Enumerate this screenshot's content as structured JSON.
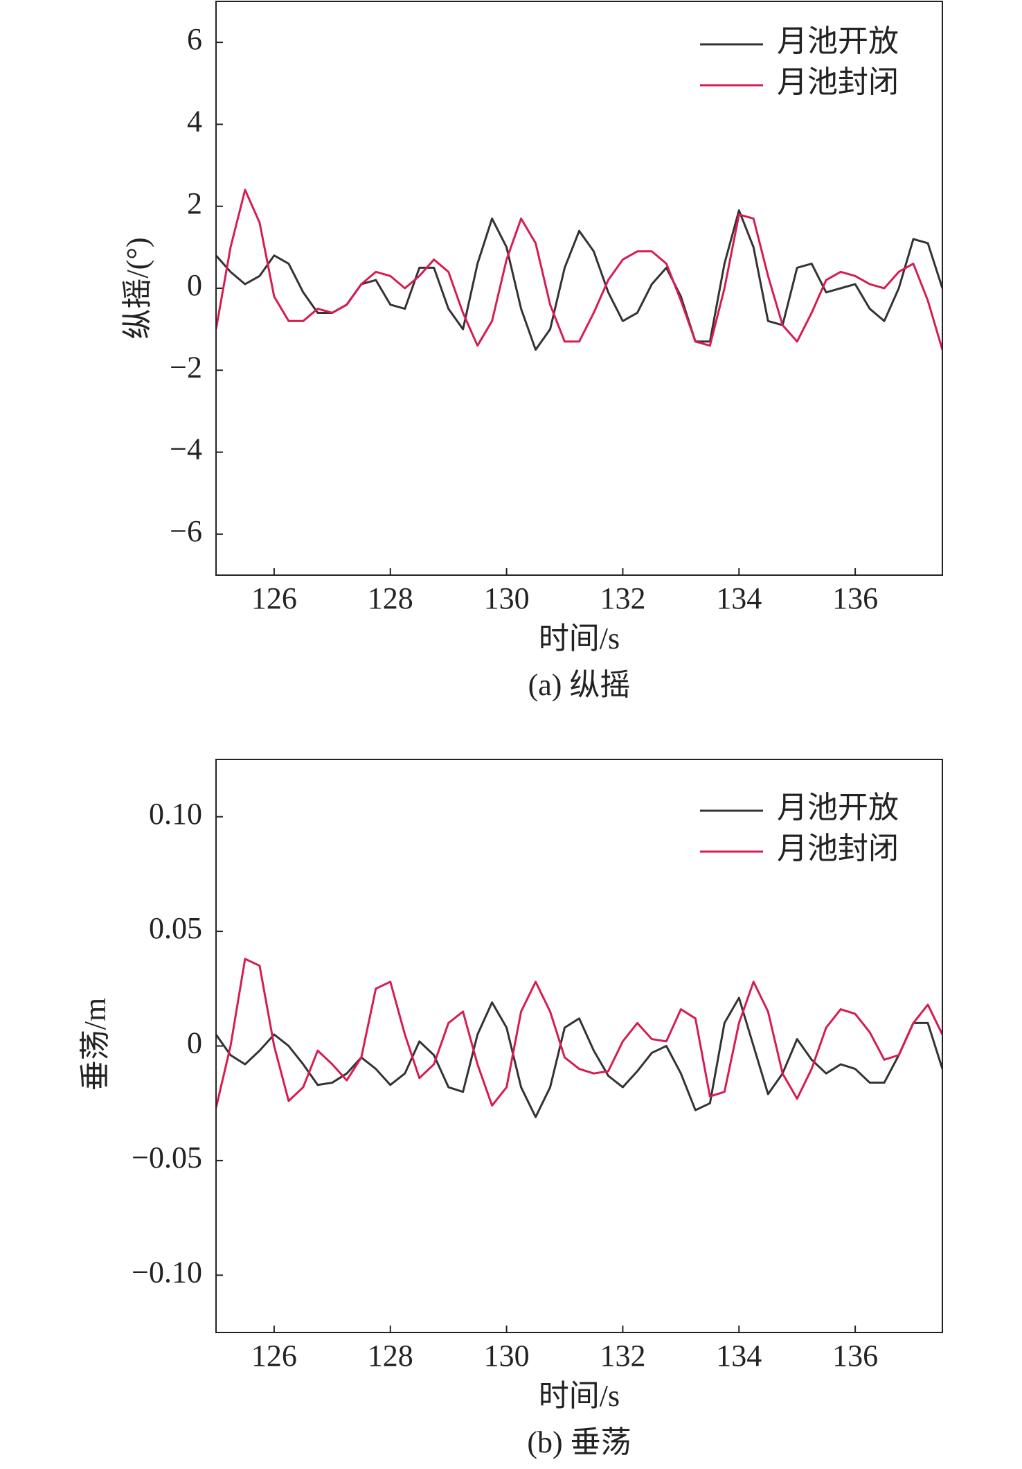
{
  "chart_data": [
    {
      "type": "line",
      "caption": "(a) 纵摇",
      "x_label": "时间/s",
      "y_label": "纵摇/(°)",
      "legend": "upper right",
      "xlim": [
        125,
        137.5
      ],
      "xticks": [
        126,
        128,
        130,
        132,
        134,
        136
      ],
      "ylim": [
        -7,
        7
      ],
      "yticks": [
        {
          "value": -6,
          "label": "−6"
        },
        {
          "value": -4,
          "label": "−4"
        },
        {
          "value": -2,
          "label": "−2"
        },
        0,
        2,
        4,
        6
      ],
      "x": [
        125,
        125.25,
        125.5,
        125.75,
        126,
        126.25,
        126.5,
        126.75,
        127,
        127.25,
        127.5,
        127.75,
        128,
        128.25,
        128.5,
        128.75,
        129,
        129.25,
        129.5,
        129.75,
        130,
        130.25,
        130.5,
        130.75,
        131,
        131.25,
        131.5,
        131.75,
        132,
        132.25,
        132.5,
        132.75,
        133,
        133.25,
        133.5,
        133.75,
        134,
        134.25,
        134.5,
        134.75,
        135,
        135.25,
        135.5,
        135.75,
        136,
        136.25,
        136.5,
        136.75,
        137,
        137.25,
        137.5
      ],
      "series": [
        {
          "name": "月池开放",
          "color": "#333333",
          "values": [
            0.8,
            0.4,
            0.1,
            0.3,
            0.8,
            0.6,
            -0.1,
            -0.6,
            -0.6,
            -0.4,
            0.1,
            0.2,
            -0.4,
            -0.5,
            0.5,
            0.5,
            -0.5,
            -1.0,
            0.6,
            1.7,
            1.0,
            -0.5,
            -1.5,
            -1.0,
            0.5,
            1.4,
            0.9,
            -0.1,
            -0.8,
            -0.6,
            0.1,
            0.5,
            -0.2,
            -1.3,
            -1.3,
            0.6,
            1.9,
            1.0,
            -0.8,
            -0.9,
            0.5,
            0.6,
            -0.1,
            0.0,
            0.1,
            -0.5,
            -0.8,
            0.0,
            1.2,
            1.1,
            0.0
          ]
        },
        {
          "name": "月池封闭",
          "color": "#d61c50",
          "values": [
            -1.0,
            1.0,
            2.4,
            1.6,
            -0.2,
            -0.8,
            -0.8,
            -0.5,
            -0.6,
            -0.4,
            0.1,
            0.4,
            0.3,
            0.0,
            0.3,
            0.7,
            0.4,
            -0.6,
            -1.4,
            -0.8,
            0.7,
            1.7,
            1.1,
            -0.4,
            -1.3,
            -1.3,
            -0.6,
            0.2,
            0.7,
            0.9,
            0.9,
            0.6,
            -0.3,
            -1.3,
            -1.4,
            0.0,
            1.8,
            1.7,
            0.3,
            -0.9,
            -1.3,
            -0.6,
            0.2,
            0.4,
            0.3,
            0.1,
            0.0,
            0.4,
            0.6,
            -0.3,
            -1.5
          ]
        }
      ]
    },
    {
      "type": "line",
      "caption": "(b) 垂荡",
      "x_label": "时间/s",
      "y_label": "垂荡/m",
      "legend": "upper right",
      "xlim": [
        125,
        137.5
      ],
      "xticks": [
        126,
        128,
        130,
        132,
        134,
        136
      ],
      "ylim": [
        -0.125,
        0.125
      ],
      "yticks": [
        {
          "value": -0.1,
          "label": "−0.10"
        },
        {
          "value": -0.05,
          "label": "−0.05"
        },
        0,
        0.05,
        {
          "value": 0.1,
          "label": "0.10"
        }
      ],
      "x": [
        125,
        125.25,
        125.5,
        125.75,
        126,
        126.25,
        126.5,
        126.75,
        127,
        127.25,
        127.5,
        127.75,
        128,
        128.25,
        128.5,
        128.75,
        129,
        129.25,
        129.5,
        129.75,
        130,
        130.25,
        130.5,
        130.75,
        131,
        131.25,
        131.5,
        131.75,
        132,
        132.25,
        132.5,
        132.75,
        133,
        133.25,
        133.5,
        133.75,
        134,
        134.25,
        134.5,
        134.75,
        135,
        135.25,
        135.5,
        135.75,
        136,
        136.25,
        136.5,
        136.75,
        137,
        137.25,
        137.5
      ],
      "series": [
        {
          "name": "月池开放",
          "color": "#333333",
          "values": [
            0.005,
            -0.004,
            -0.008,
            -0.002,
            0.005,
            0.0,
            -0.008,
            -0.017,
            -0.016,
            -0.012,
            -0.005,
            -0.01,
            -0.017,
            -0.012,
            0.002,
            -0.004,
            -0.018,
            -0.02,
            0.005,
            0.019,
            0.008,
            -0.018,
            -0.031,
            -0.018,
            0.008,
            0.012,
            -0.002,
            -0.013,
            -0.018,
            -0.011,
            -0.003,
            0.0,
            -0.012,
            -0.028,
            -0.025,
            0.01,
            0.021,
            0.0,
            -0.021,
            -0.012,
            0.003,
            -0.006,
            -0.012,
            -0.008,
            -0.01,
            -0.016,
            -0.016,
            -0.004,
            0.01,
            0.01,
            -0.01
          ]
        },
        {
          "name": "月池封闭",
          "color": "#d61c50",
          "values": [
            -0.027,
            0.0,
            0.038,
            0.035,
            0.0,
            -0.024,
            -0.018,
            -0.002,
            -0.008,
            -0.015,
            -0.005,
            0.025,
            0.028,
            0.005,
            -0.014,
            -0.008,
            0.01,
            0.015,
            -0.008,
            -0.026,
            -0.018,
            0.015,
            0.028,
            0.015,
            -0.005,
            -0.01,
            -0.012,
            -0.011,
            0.002,
            0.01,
            0.003,
            0.002,
            0.016,
            0.012,
            -0.022,
            -0.02,
            0.01,
            0.028,
            0.015,
            -0.012,
            -0.023,
            -0.01,
            0.008,
            0.016,
            0.014,
            0.006,
            -0.006,
            -0.004,
            0.01,
            0.018,
            0.005
          ]
        }
      ]
    }
  ]
}
